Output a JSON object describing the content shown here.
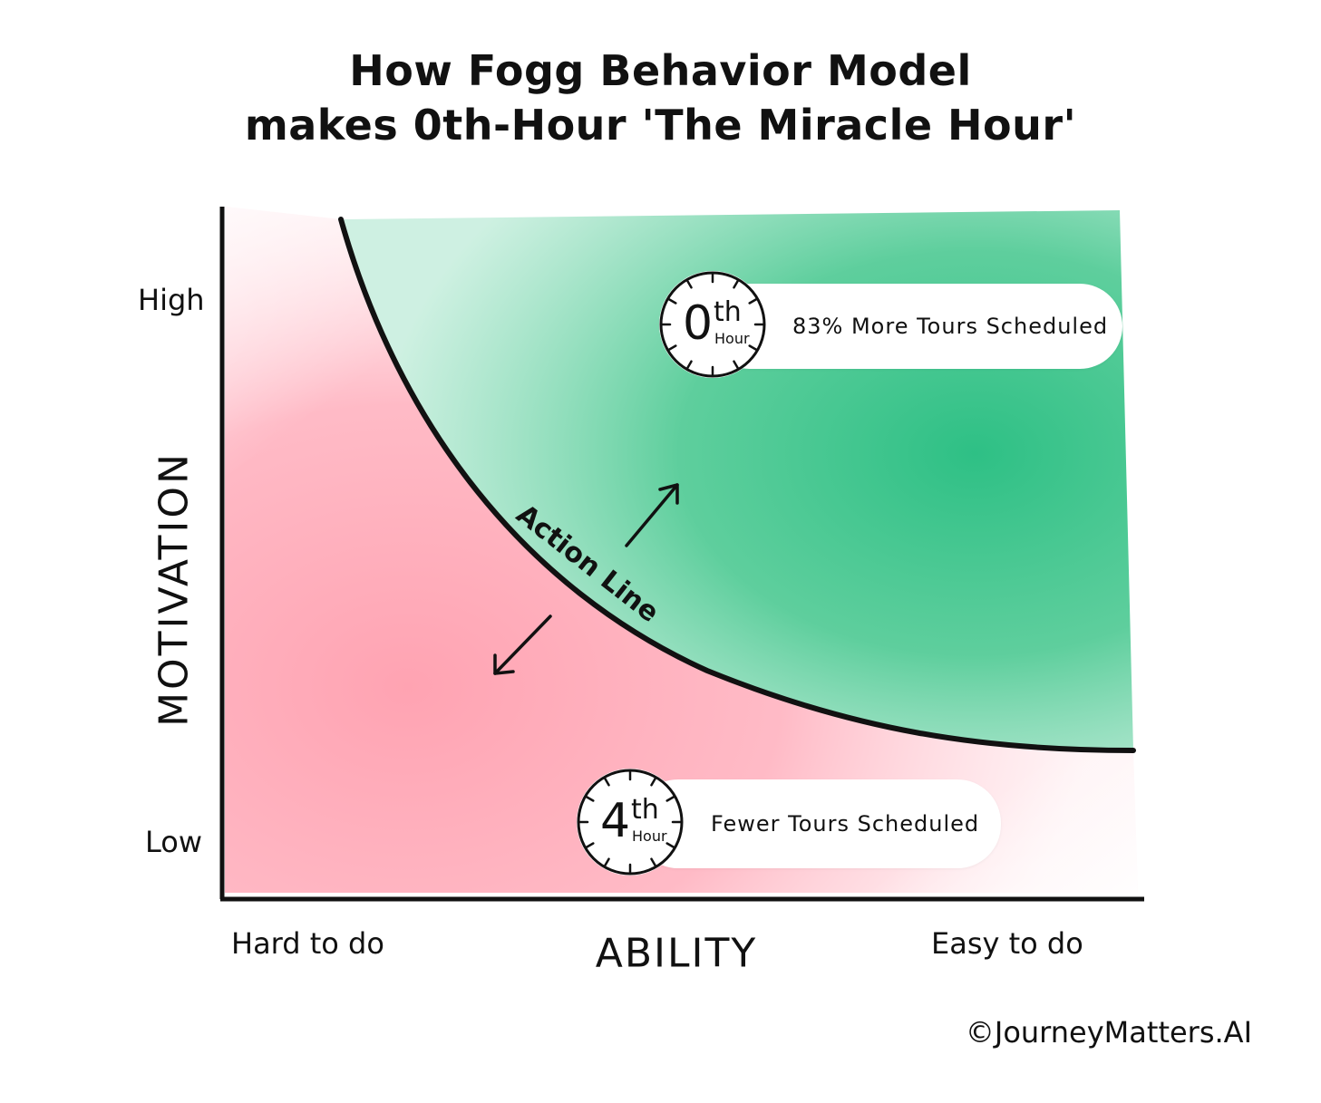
{
  "title": {
    "line1": "How Fogg Behavior Model",
    "line2": "makes 0th-Hour 'The Miracle Hour'"
  },
  "y_axis": {
    "title": "MOTIVATION",
    "high": "High",
    "low": "Low"
  },
  "x_axis": {
    "title": "ABILITY",
    "left": "Hard to do",
    "right": "Easy to do"
  },
  "curve": {
    "label": "Action Line"
  },
  "top_marker": {
    "number": "0",
    "suffix": "th",
    "unit": "Hour",
    "text": "83% More Tours Scheduled"
  },
  "bottom_marker": {
    "number": "4",
    "suffix": "th",
    "unit": "Hour",
    "text": "Fewer Tours Scheduled"
  },
  "copyright": "©JourneyMatters.AI",
  "colors": {
    "above_line": "#2ec085",
    "below_line": "#ffa3b2",
    "ink": "#111111"
  }
}
